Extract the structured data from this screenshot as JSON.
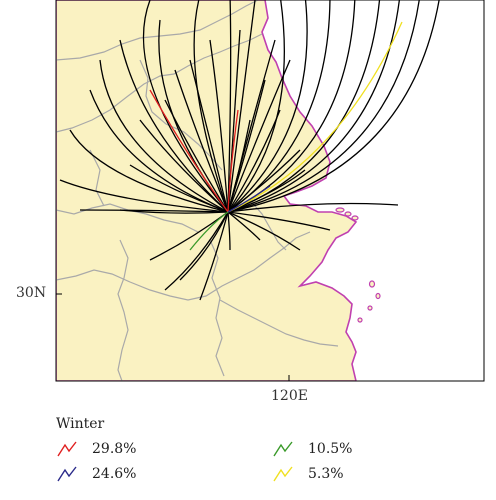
{
  "map": {
    "lat_label": "30N",
    "lon_label": "120E",
    "colors": {
      "land": "#faf2c2",
      "sea": "#ffffff",
      "coast": "#c040b0",
      "borders": "#a9a9a9",
      "frame": "#000000",
      "track": "#000000"
    }
  },
  "legend": {
    "title": "Winter",
    "items": [
      {
        "label": "29.8%",
        "color": "#e02020"
      },
      {
        "label": "24.6%",
        "color": "#2a2a8a"
      },
      {
        "label": "10.5%",
        "color": "#3a9a2a"
      },
      {
        "label": "5.3%",
        "color": "#f0e020"
      }
    ]
  }
}
